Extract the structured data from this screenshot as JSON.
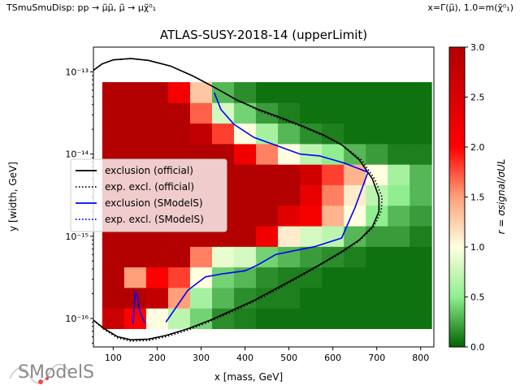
{
  "header": {
    "left_label": "TSmuSmuDisp: pp → μ̃μ̃, μ̃ → μχ̃⁰₁",
    "right_label": "x=Γ(μ̃), 1.0=m(χ̃⁰₁)"
  },
  "logo_text": "SModelS",
  "chart_data": {
    "type": "heatmap",
    "title": "ATLAS-SUSY-2018-14 (upperLimit)",
    "xlabel": "x [mass, GeV]",
    "ylabel": "y [width, GeV]",
    "colorbar_label": "r = σsignal/σUL",
    "xlim": [
      55,
      830
    ],
    "ylog": true,
    "ylim": [
      4.5e-17,
      2e-13
    ],
    "x_ticks": [
      100,
      200,
      300,
      400,
      500,
      600,
      700,
      800
    ],
    "x_tick_labels": [
      "100",
      "200",
      "300",
      "400",
      "500",
      "600",
      "700",
      "800"
    ],
    "y_ticks": [
      1e-16,
      1e-15,
      1e-14,
      1e-13
    ],
    "y_tick_labels": [
      "10⁻¹⁶",
      "10⁻¹⁵",
      "10⁻¹⁴",
      "10⁻¹³"
    ],
    "colorbar_range": [
      0.0,
      3.0
    ],
    "colorbar_ticks": [
      0.0,
      0.5,
      1.0,
      1.5,
      2.0,
      2.5,
      3.0
    ],
    "colorbar_tick_labels": [
      "0.0",
      "0.5",
      "1.0",
      "1.5",
      "2.0",
      "2.5",
      "3.0"
    ],
    "colormap_stops": [
      {
        "r": 0.0,
        "color": "#006400"
      },
      {
        "r": 0.5,
        "color": "#90EE90"
      },
      {
        "r": 1.0,
        "color": "#FFFFE0"
      },
      {
        "r": 1.5,
        "color": "#FFA07A"
      },
      {
        "r": 2.0,
        "color": "#FF0000"
      },
      {
        "r": 3.0,
        "color": "#B30000"
      }
    ],
    "grid_x_centers": [
      100,
      150,
      200,
      250,
      300,
      350,
      400,
      450,
      500,
      550,
      600,
      650,
      700,
      750,
      800
    ],
    "grid_y_exponents": [
      -16,
      -15.75,
      -15.5,
      -15.25,
      -15,
      -14.75,
      -14.5,
      -14.25,
      -14,
      -13.75,
      -13.5,
      -13.25
    ],
    "grid_r_values": [
      [
        2.7,
        2.0,
        1.0,
        0.7,
        0.4,
        0.15,
        0.1,
        0.05,
        0.05,
        0.05,
        0.05,
        0.05,
        0.05,
        0.05,
        0.05
      ],
      [
        3.0,
        3.0,
        2.8,
        1.5,
        0.6,
        0.3,
        0.15,
        0.1,
        0.1,
        0.05,
        0.05,
        0.05,
        0.05,
        0.05,
        0.05
      ],
      [
        3.0,
        1.5,
        2.0,
        1.8,
        1.0,
        0.4,
        0.3,
        0.15,
        0.1,
        0.1,
        0.05,
        0.05,
        0.05,
        0.05,
        0.05
      ],
      [
        3.0,
        3.0,
        3.0,
        3.0,
        1.6,
        0.9,
        0.8,
        0.4,
        0.3,
        0.2,
        0.15,
        0.1,
        0.05,
        0.05,
        0.05
      ],
      [
        3.0,
        3.0,
        3.0,
        3.0,
        3.0,
        3.0,
        3.0,
        2.2,
        1.1,
        0.8,
        0.7,
        0.3,
        0.2,
        0.2,
        0.1
      ],
      [
        3.0,
        3.0,
        3.0,
        3.0,
        3.0,
        3.0,
        3.0,
        3.0,
        2.4,
        2.1,
        1.4,
        1.0,
        0.5,
        0.3,
        0.2
      ],
      [
        3.0,
        3.0,
        3.0,
        3.0,
        3.0,
        3.0,
        3.0,
        3.0,
        3.0,
        2.3,
        1.6,
        1.1,
        0.7,
        0.5,
        0.3
      ],
      [
        3.0,
        3.0,
        3.0,
        3.0,
        3.0,
        3.0,
        3.0,
        3.0,
        3.0,
        2.6,
        1.8,
        1.4,
        1.0,
        0.6,
        0.3
      ],
      [
        3.0,
        3.0,
        3.0,
        3.0,
        3.0,
        3.0,
        2.2,
        1.6,
        1.0,
        0.7,
        0.5,
        0.3,
        0.2,
        0.1,
        0.1
      ],
      [
        3.0,
        3.0,
        3.0,
        3.0,
        2.8,
        1.8,
        1.0,
        0.6,
        0.3,
        0.15,
        0.1,
        0.05,
        0.05,
        0.05,
        0.05
      ],
      [
        3.0,
        3.0,
        3.0,
        3.0,
        1.7,
        0.8,
        0.4,
        0.2,
        0.1,
        0.05,
        0.05,
        0.05,
        0.05,
        0.05,
        0.05
      ],
      [
        3.0,
        3.0,
        3.0,
        2.1,
        1.3,
        0.3,
        0.15,
        0.05,
        0.05,
        0.05,
        0.05,
        0.05,
        0.05,
        0.05,
        0.05
      ]
    ],
    "series": [
      {
        "name": "exclusion (official)",
        "color": "#000000",
        "style": "solid",
        "points": [
          {
            "x": 50,
            "y": 1e-13
          },
          {
            "x": 75,
            "y": 1.25e-13
          },
          {
            "x": 100,
            "y": 1.4e-13
          },
          {
            "x": 140,
            "y": 1.45e-13
          },
          {
            "x": 180,
            "y": 1.38e-13
          },
          {
            "x": 230,
            "y": 1.18e-13
          },
          {
            "x": 280,
            "y": 9e-14
          },
          {
            "x": 330,
            "y": 6.5e-14
          },
          {
            "x": 380,
            "y": 4.6e-14
          },
          {
            "x": 430,
            "y": 3.5e-14
          },
          {
            "x": 480,
            "y": 2.8e-14
          },
          {
            "x": 530,
            "y": 2.2e-14
          },
          {
            "x": 580,
            "y": 1.7e-14
          },
          {
            "x": 620,
            "y": 1.3e-14
          },
          {
            "x": 660,
            "y": 8.5e-15
          },
          {
            "x": 690,
            "y": 5e-15
          },
          {
            "x": 705,
            "y": 3e-15
          },
          {
            "x": 705,
            "y": 2e-15
          },
          {
            "x": 690,
            "y": 1.3e-15
          },
          {
            "x": 660,
            "y": 9e-16
          },
          {
            "x": 620,
            "y": 6.5e-16
          },
          {
            "x": 570,
            "y": 4.5e-16
          },
          {
            "x": 520,
            "y": 3.2e-16
          },
          {
            "x": 470,
            "y": 2.3e-16
          },
          {
            "x": 420,
            "y": 1.65e-16
          },
          {
            "x": 370,
            "y": 1.25e-16
          },
          {
            "x": 320,
            "y": 9.5e-17
          },
          {
            "x": 270,
            "y": 7.5e-17
          },
          {
            "x": 220,
            "y": 6.2e-17
          },
          {
            "x": 180,
            "y": 5.6e-17
          },
          {
            "x": 140,
            "y": 5.5e-17
          },
          {
            "x": 110,
            "y": 6e-17
          },
          {
            "x": 80,
            "y": 7.5e-17
          },
          {
            "x": 50,
            "y": 1e-16
          }
        ]
      },
      {
        "name": "exp. excl. (official)",
        "color": "#000000",
        "style": "dotted",
        "points": [
          {
            "x": 50,
            "y": 1e-13
          },
          {
            "x": 75,
            "y": 1.25e-13
          },
          {
            "x": 100,
            "y": 1.4e-13
          },
          {
            "x": 140,
            "y": 1.45e-13
          },
          {
            "x": 180,
            "y": 1.38e-13
          },
          {
            "x": 230,
            "y": 1.18e-13
          },
          {
            "x": 280,
            "y": 9e-14
          },
          {
            "x": 330,
            "y": 6.5e-14
          },
          {
            "x": 380,
            "y": 4.6e-14
          },
          {
            "x": 430,
            "y": 3.4e-14
          },
          {
            "x": 480,
            "y": 2.7e-14
          },
          {
            "x": 530,
            "y": 2.15e-14
          },
          {
            "x": 580,
            "y": 1.65e-14
          },
          {
            "x": 625,
            "y": 1.25e-14
          },
          {
            "x": 665,
            "y": 8.5e-15
          },
          {
            "x": 695,
            "y": 5e-15
          },
          {
            "x": 712,
            "y": 3e-15
          },
          {
            "x": 710,
            "y": 2e-15
          },
          {
            "x": 693,
            "y": 1.3e-15
          },
          {
            "x": 660,
            "y": 8.8e-16
          },
          {
            "x": 620,
            "y": 6.3e-16
          },
          {
            "x": 570,
            "y": 4.4e-16
          },
          {
            "x": 520,
            "y": 3.1e-16
          },
          {
            "x": 470,
            "y": 2.2e-16
          },
          {
            "x": 420,
            "y": 1.6e-16
          },
          {
            "x": 370,
            "y": 1.2e-16
          },
          {
            "x": 320,
            "y": 9.2e-17
          },
          {
            "x": 270,
            "y": 7.2e-17
          },
          {
            "x": 220,
            "y": 6e-17
          },
          {
            "x": 180,
            "y": 5.4e-17
          },
          {
            "x": 140,
            "y": 5.3e-17
          },
          {
            "x": 110,
            "y": 5.8e-17
          },
          {
            "x": 80,
            "y": 7.3e-17
          },
          {
            "x": 50,
            "y": 1e-16
          }
        ]
      },
      {
        "name": "exclusion (SModelS)",
        "color": "#0000FF",
        "style": "solid",
        "points": [
          {
            "x": 330,
            "y": 5.6e-14
          },
          {
            "x": 345,
            "y": 3.5e-14
          },
          {
            "x": 375,
            "y": 2.3e-14
          },
          {
            "x": 420,
            "y": 1.6e-14
          },
          {
            "x": 475,
            "y": 1.25e-14
          },
          {
            "x": 525,
            "y": 1e-14
          },
          {
            "x": 570,
            "y": 9.5e-15
          },
          {
            "x": 625,
            "y": 7.8e-15
          },
          {
            "x": 680,
            "y": 6e-15
          },
          {
            "x": 650,
            "y": 2.2e-15
          },
          {
            "x": 620,
            "y": 9.5e-16
          },
          {
            "x": 560,
            "y": 7.5e-16
          },
          {
            "x": 520,
            "y": 6.8e-16
          },
          {
            "x": 470,
            "y": 6e-16
          },
          {
            "x": 430,
            "y": 4.5e-16
          },
          {
            "x": 400,
            "y": 3.8e-16
          },
          {
            "x": 350,
            "y": 3.5e-16
          },
          {
            "x": 310,
            "y": 3.2e-16
          },
          {
            "x": 270,
            "y": 2.2e-16
          },
          {
            "x": 220,
            "y": 9e-17
          }
        ]
      },
      {
        "name": "exclusion (SModelS)",
        "color": "#0000FF",
        "style": "solid",
        "points": [
          {
            "x": 145,
            "y": 8.5e-17
          },
          {
            "x": 150,
            "y": 2.1e-16
          },
          {
            "x": 155,
            "y": 1.9e-16
          },
          {
            "x": 160,
            "y": 1.25e-16
          },
          {
            "x": 165,
            "y": 1.05e-16
          },
          {
            "x": 172,
            "y": 8.8e-17
          }
        ]
      }
    ],
    "legend": {
      "position": "center-left",
      "entries": [
        {
          "label": "exclusion (official)",
          "color": "#000000",
          "style": "solid"
        },
        {
          "label": "exp. excl. (official)",
          "color": "#000000",
          "style": "dotted"
        },
        {
          "label": "exclusion (SModelS)",
          "color": "#0000FF",
          "style": "solid"
        },
        {
          "label": "exp. excl. (SModelS)",
          "color": "#0000FF",
          "style": "dotted"
        }
      ]
    }
  }
}
